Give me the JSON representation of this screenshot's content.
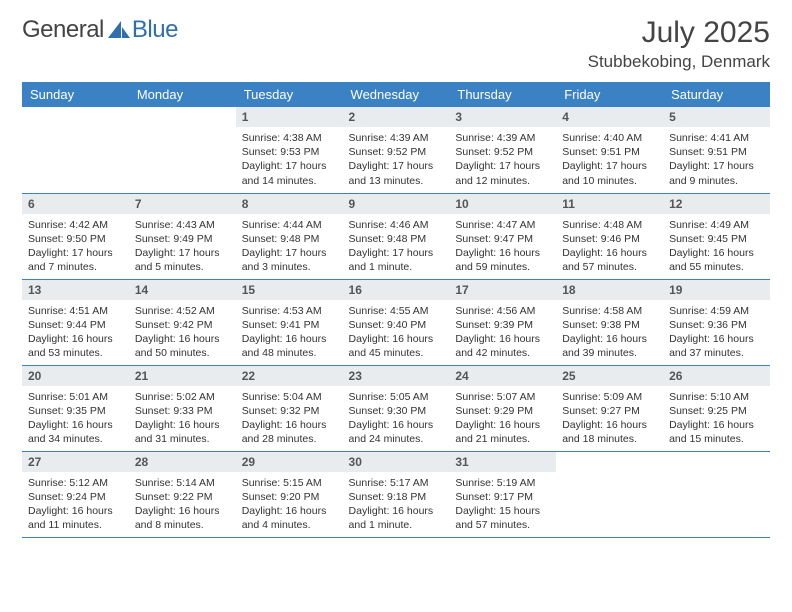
{
  "logo": {
    "text_left": "General",
    "text_right": "Blue",
    "accent_color": "#2f6fb0"
  },
  "title": {
    "month": "July 2025",
    "location": "Stubbekobing, Denmark"
  },
  "colors": {
    "header_bg": "#3b82c4",
    "header_text": "#ffffff",
    "daynum_bg": "#e9ecef",
    "border": "#3b82c4",
    "text": "#333333"
  },
  "weekdays": [
    "Sunday",
    "Monday",
    "Tuesday",
    "Wednesday",
    "Thursday",
    "Friday",
    "Saturday"
  ],
  "weeks": [
    [
      null,
      null,
      {
        "n": "1",
        "sr": "4:38 AM",
        "ss": "9:53 PM",
        "dl": "17 hours and 14 minutes."
      },
      {
        "n": "2",
        "sr": "4:39 AM",
        "ss": "9:52 PM",
        "dl": "17 hours and 13 minutes."
      },
      {
        "n": "3",
        "sr": "4:39 AM",
        "ss": "9:52 PM",
        "dl": "17 hours and 12 minutes."
      },
      {
        "n": "4",
        "sr": "4:40 AM",
        "ss": "9:51 PM",
        "dl": "17 hours and 10 minutes."
      },
      {
        "n": "5",
        "sr": "4:41 AM",
        "ss": "9:51 PM",
        "dl": "17 hours and 9 minutes."
      }
    ],
    [
      {
        "n": "6",
        "sr": "4:42 AM",
        "ss": "9:50 PM",
        "dl": "17 hours and 7 minutes."
      },
      {
        "n": "7",
        "sr": "4:43 AM",
        "ss": "9:49 PM",
        "dl": "17 hours and 5 minutes."
      },
      {
        "n": "8",
        "sr": "4:44 AM",
        "ss": "9:48 PM",
        "dl": "17 hours and 3 minutes."
      },
      {
        "n": "9",
        "sr": "4:46 AM",
        "ss": "9:48 PM",
        "dl": "17 hours and 1 minute."
      },
      {
        "n": "10",
        "sr": "4:47 AM",
        "ss": "9:47 PM",
        "dl": "16 hours and 59 minutes."
      },
      {
        "n": "11",
        "sr": "4:48 AM",
        "ss": "9:46 PM",
        "dl": "16 hours and 57 minutes."
      },
      {
        "n": "12",
        "sr": "4:49 AM",
        "ss": "9:45 PM",
        "dl": "16 hours and 55 minutes."
      }
    ],
    [
      {
        "n": "13",
        "sr": "4:51 AM",
        "ss": "9:44 PM",
        "dl": "16 hours and 53 minutes."
      },
      {
        "n": "14",
        "sr": "4:52 AM",
        "ss": "9:42 PM",
        "dl": "16 hours and 50 minutes."
      },
      {
        "n": "15",
        "sr": "4:53 AM",
        "ss": "9:41 PM",
        "dl": "16 hours and 48 minutes."
      },
      {
        "n": "16",
        "sr": "4:55 AM",
        "ss": "9:40 PM",
        "dl": "16 hours and 45 minutes."
      },
      {
        "n": "17",
        "sr": "4:56 AM",
        "ss": "9:39 PM",
        "dl": "16 hours and 42 minutes."
      },
      {
        "n": "18",
        "sr": "4:58 AM",
        "ss": "9:38 PM",
        "dl": "16 hours and 39 minutes."
      },
      {
        "n": "19",
        "sr": "4:59 AM",
        "ss": "9:36 PM",
        "dl": "16 hours and 37 minutes."
      }
    ],
    [
      {
        "n": "20",
        "sr": "5:01 AM",
        "ss": "9:35 PM",
        "dl": "16 hours and 34 minutes."
      },
      {
        "n": "21",
        "sr": "5:02 AM",
        "ss": "9:33 PM",
        "dl": "16 hours and 31 minutes."
      },
      {
        "n": "22",
        "sr": "5:04 AM",
        "ss": "9:32 PM",
        "dl": "16 hours and 28 minutes."
      },
      {
        "n": "23",
        "sr": "5:05 AM",
        "ss": "9:30 PM",
        "dl": "16 hours and 24 minutes."
      },
      {
        "n": "24",
        "sr": "5:07 AM",
        "ss": "9:29 PM",
        "dl": "16 hours and 21 minutes."
      },
      {
        "n": "25",
        "sr": "5:09 AM",
        "ss": "9:27 PM",
        "dl": "16 hours and 18 minutes."
      },
      {
        "n": "26",
        "sr": "5:10 AM",
        "ss": "9:25 PM",
        "dl": "16 hours and 15 minutes."
      }
    ],
    [
      {
        "n": "27",
        "sr": "5:12 AM",
        "ss": "9:24 PM",
        "dl": "16 hours and 11 minutes."
      },
      {
        "n": "28",
        "sr": "5:14 AM",
        "ss": "9:22 PM",
        "dl": "16 hours and 8 minutes."
      },
      {
        "n": "29",
        "sr": "5:15 AM",
        "ss": "9:20 PM",
        "dl": "16 hours and 4 minutes."
      },
      {
        "n": "30",
        "sr": "5:17 AM",
        "ss": "9:18 PM",
        "dl": "16 hours and 1 minute."
      },
      {
        "n": "31",
        "sr": "5:19 AM",
        "ss": "9:17 PM",
        "dl": "15 hours and 57 minutes."
      },
      null,
      null
    ]
  ],
  "labels": {
    "sunrise": "Sunrise:",
    "sunset": "Sunset:",
    "daylight": "Daylight:"
  }
}
